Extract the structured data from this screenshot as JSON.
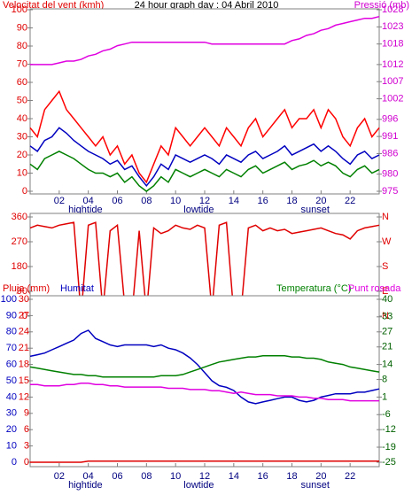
{
  "chart_data": [
    {
      "type": "line",
      "title": "24 hour graph day : 04 Abril 2010",
      "ylabel": "Velocitat del vent (kmh)",
      "y2label": "Pressió (mb)",
      "ycolor": "#e00000",
      "y2color": "#d000d0",
      "x": [
        0,
        0.5,
        1,
        1.5,
        2,
        2.5,
        3,
        3.5,
        4,
        4.5,
        5,
        5.5,
        6,
        6.5,
        7,
        7.5,
        8,
        8.5,
        9,
        9.5,
        10,
        10.5,
        11,
        11.5,
        12,
        12.5,
        13,
        13.5,
        14,
        14.5,
        15,
        15.5,
        16,
        16.5,
        17,
        17.5,
        18,
        18.5,
        19,
        19.5,
        20,
        20.5,
        21,
        21.5,
        22,
        22.5,
        23,
        23.5,
        24
      ],
      "xlim": [
        0,
        24
      ],
      "xticks": [
        {
          "value": 2,
          "label": "02"
        },
        {
          "value": 4,
          "label": "04"
        },
        {
          "value": 6,
          "label": "06"
        },
        {
          "value": 8,
          "label": "08"
        },
        {
          "value": 10,
          "label": "10"
        },
        {
          "value": 12,
          "label": "12"
        },
        {
          "value": 14,
          "label": "14"
        },
        {
          "value": 16,
          "label": "16"
        },
        {
          "value": 18,
          "label": "18"
        },
        {
          "value": 20,
          "label": "20"
        },
        {
          "value": 22,
          "label": "22"
        }
      ],
      "ylim": [
        0,
        100
      ],
      "yticks": [
        0,
        10,
        20,
        30,
        40,
        50,
        60,
        70,
        80,
        90,
        100
      ],
      "y2lim": [
        975,
        1028
      ],
      "y2ticks": [
        975,
        980,
        986,
        991,
        996,
        1002,
        1007,
        1012,
        1018,
        1023,
        1028
      ],
      "annotations": [
        {
          "text": "hightide",
          "x": 3.8
        },
        {
          "text": "lowtide",
          "x": 11.6
        },
        {
          "text": "sunset",
          "x": 19.6
        }
      ],
      "series": [
        {
          "color": "#ff0000",
          "values": [
            35,
            30,
            45,
            50,
            55,
            45,
            40,
            35,
            30,
            25,
            30,
            20,
            25,
            15,
            20,
            10,
            5,
            15,
            25,
            20,
            35,
            30,
            25,
            30,
            35,
            30,
            25,
            35,
            30,
            25,
            35,
            40,
            30,
            35,
            40,
            45,
            35,
            40,
            40,
            45,
            35,
            45,
            40,
            30,
            25,
            35,
            40,
            30,
            35
          ]
        },
        {
          "color": "#0000c0",
          "values": [
            25,
            22,
            28,
            30,
            35,
            32,
            28,
            25,
            22,
            20,
            18,
            15,
            17,
            12,
            14,
            8,
            3,
            8,
            15,
            12,
            20,
            18,
            16,
            18,
            20,
            18,
            15,
            20,
            18,
            16,
            20,
            22,
            18,
            20,
            22,
            25,
            20,
            22,
            24,
            26,
            22,
            25,
            22,
            18,
            15,
            20,
            22,
            18,
            20
          ]
        },
        {
          "color": "#008000",
          "values": [
            15,
            12,
            18,
            20,
            22,
            20,
            18,
            15,
            12,
            10,
            10,
            8,
            10,
            5,
            8,
            3,
            0,
            3,
            8,
            5,
            12,
            10,
            8,
            10,
            12,
            10,
            8,
            12,
            10,
            8,
            12,
            14,
            10,
            12,
            14,
            16,
            12,
            14,
            15,
            17,
            14,
            16,
            14,
            10,
            8,
            12,
            14,
            10,
            12
          ]
        },
        {
          "color": "#e000e0",
          "axis": "y2",
          "values": [
            1012,
            1012,
            1012,
            1012,
            1012.5,
            1013,
            1013,
            1013.5,
            1014.5,
            1015,
            1016,
            1016.5,
            1017.5,
            1018,
            1018.5,
            1018.5,
            1018.5,
            1018.5,
            1018.5,
            1018.5,
            1018.5,
            1018.5,
            1018.5,
            1018.5,
            1018.5,
            1018,
            1018,
            1018,
            1018,
            1018,
            1018,
            1018,
            1018,
            1018,
            1018,
            1018,
            1019,
            1019.5,
            1020.5,
            1021,
            1022,
            1022.5,
            1023.5,
            1024,
            1024.5,
            1025,
            1025.5,
            1025.5,
            1026
          ]
        }
      ]
    },
    {
      "type": "line",
      "ycolor": "#e00000",
      "y2color": "#e00000",
      "x": [
        0,
        0.5,
        1,
        1.5,
        2,
        2.5,
        3,
        3.5,
        4,
        4.5,
        5,
        5.5,
        6,
        6.5,
        7,
        7.5,
        8,
        8.5,
        9,
        9.5,
        10,
        10.5,
        11,
        11.5,
        12,
        12.5,
        13,
        13.5,
        14,
        14.5,
        15,
        15.5,
        16,
        16.5,
        17,
        17.5,
        18,
        18.5,
        19,
        19.5,
        20,
        20.5,
        21,
        21.5,
        22,
        22.5,
        23,
        23.5,
        24
      ],
      "xlim": [
        0,
        24
      ],
      "ylim": [
        0,
        360
      ],
      "yticks": [
        0,
        90,
        180,
        270,
        360
      ],
      "y2lim": [
        0,
        360
      ],
      "y2ticks": [
        {
          "value": 0,
          "label": "N"
        },
        {
          "value": 90,
          "label": "E"
        },
        {
          "value": 180,
          "label": "S"
        },
        {
          "value": 270,
          "label": "W"
        },
        {
          "value": 360,
          "label": "N"
        }
      ],
      "series": [
        {
          "color": "#e00000",
          "values": [
            320,
            330,
            325,
            320,
            330,
            335,
            340,
            5,
            330,
            340,
            20,
            310,
            330,
            40,
            5,
            310,
            10,
            320,
            300,
            310,
            330,
            320,
            315,
            330,
            320,
            20,
            330,
            340,
            10,
            15,
            320,
            330,
            310,
            320,
            310,
            315,
            300,
            305,
            310,
            315,
            320,
            310,
            300,
            295,
            280,
            310,
            320,
            325,
            330
          ]
        }
      ]
    },
    {
      "type": "line",
      "ycolor": "#0000c0",
      "y2color": "#006000",
      "y3color": "#e00000",
      "x": [
        0,
        0.5,
        1,
        1.5,
        2,
        2.5,
        3,
        3.5,
        4,
        4.5,
        5,
        5.5,
        6,
        6.5,
        7,
        7.5,
        8,
        8.5,
        9,
        9.5,
        10,
        10.5,
        11,
        11.5,
        12,
        12.5,
        13,
        13.5,
        14,
        14.5,
        15,
        15.5,
        16,
        16.5,
        17,
        17.5,
        18,
        18.5,
        19,
        19.5,
        20,
        20.5,
        21,
        21.5,
        22,
        22.5,
        23,
        23.5,
        24
      ],
      "xlim": [
        0,
        24
      ],
      "xticks": [
        {
          "value": 2,
          "label": "02"
        },
        {
          "value": 4,
          "label": "04"
        },
        {
          "value": 6,
          "label": "06"
        },
        {
          "value": 8,
          "label": "08"
        },
        {
          "value": 10,
          "label": "10"
        },
        {
          "value": 12,
          "label": "12"
        },
        {
          "value": 14,
          "label": "14"
        },
        {
          "value": 16,
          "label": "16"
        },
        {
          "value": 18,
          "label": "18"
        },
        {
          "value": 20,
          "label": "20"
        },
        {
          "value": 22,
          "label": "22"
        }
      ],
      "ylim": [
        0,
        100
      ],
      "yticks": [
        0,
        10,
        20,
        30,
        40,
        50,
        60,
        70,
        80,
        90,
        100
      ],
      "y3lim": [
        0,
        30
      ],
      "y3ticks": [
        0,
        3,
        6,
        9,
        12,
        15,
        18,
        21,
        24,
        27,
        30
      ],
      "y2lim": [
        -25,
        40
      ],
      "y2ticks": [
        -25,
        -19,
        -12,
        -6,
        1,
        8,
        14,
        21,
        27,
        33,
        40
      ],
      "annotations": [
        {
          "text": "hightide",
          "x": 3.8
        },
        {
          "text": "lowtide",
          "x": 11.6
        },
        {
          "text": "sunset",
          "x": 19.6
        }
      ],
      "series": [
        {
          "name": "Pluja (mm)",
          "color": "#e00000",
          "axis": "y3",
          "values": [
            0,
            0,
            0,
            0,
            0,
            0,
            0,
            0,
            0.2,
            0.2,
            0.2,
            0.2,
            0.2,
            0.2,
            0.2,
            0.2,
            0.2,
            0.2,
            0.2,
            0.2,
            0.2,
            0.2,
            0.2,
            0.2,
            0.2,
            0.2,
            0.2,
            0.2,
            0.2,
            0.2,
            0.2,
            0.2,
            0.2,
            0.2,
            0.2,
            0.2,
            0.2,
            0.2,
            0.2,
            0.2,
            0.2,
            0.2,
            0.2,
            0.2,
            0.2,
            0.2,
            0.2,
            0.2,
            0.2
          ]
        },
        {
          "name": "Humitat",
          "color": "#0000c0",
          "values": [
            65,
            66,
            67,
            69,
            71,
            73,
            75,
            79,
            81,
            76,
            74,
            72,
            71,
            72,
            72,
            72,
            72,
            71,
            72,
            70,
            69,
            67,
            64,
            60,
            55,
            50,
            47,
            46,
            44,
            40,
            37,
            36,
            37,
            38,
            39,
            40,
            40,
            38,
            37,
            38,
            40,
            41,
            42,
            42,
            42,
            43,
            43,
            44,
            45
          ]
        },
        {
          "name": "Temperatura (°C)",
          "color": "#008000",
          "axis": "y2",
          "values": [
            13,
            12.5,
            12,
            11.5,
            11,
            10.5,
            10,
            10,
            9.5,
            9.5,
            9,
            9,
            9,
            9,
            9,
            9,
            9,
            9,
            9.5,
            9.5,
            9.5,
            10,
            11,
            12,
            13,
            14,
            15,
            15.5,
            16,
            16.5,
            17,
            17,
            17.5,
            17.5,
            17.5,
            17.5,
            17,
            17,
            16.5,
            16.5,
            16,
            15,
            14.5,
            14,
            13,
            12.5,
            12,
            11.5,
            11
          ]
        },
        {
          "name": "Punt rosada",
          "color": "#e000e0",
          "axis": "y2",
          "values": [
            6,
            6,
            5.5,
            5.5,
            5.5,
            6,
            6,
            6.5,
            6.5,
            6,
            6,
            5.5,
            5.5,
            5,
            5,
            5,
            5,
            5,
            5,
            4.5,
            4.5,
            4.5,
            4,
            4,
            4,
            3.5,
            3.5,
            3,
            2.5,
            3,
            2.5,
            2,
            2,
            2,
            1.5,
            1.5,
            1.5,
            1,
            1,
            0.5,
            0.5,
            0,
            0,
            0,
            -0.5,
            -0.5,
            -0.5,
            -0.5,
            -0.5
          ]
        }
      ]
    }
  ]
}
